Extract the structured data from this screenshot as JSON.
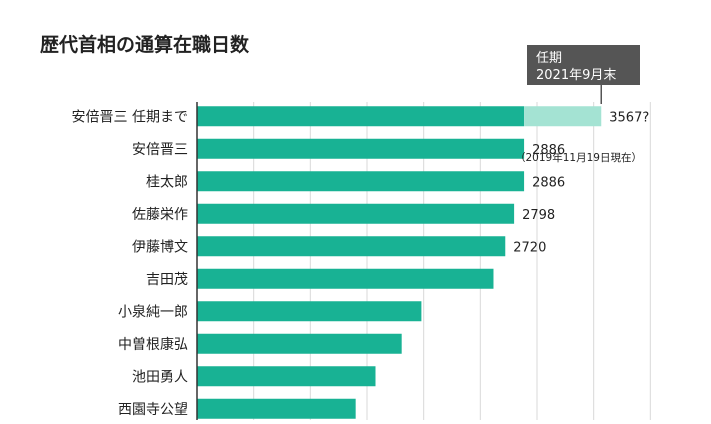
{
  "chart_data": {
    "type": "bar",
    "orientation": "horizontal",
    "title": "歴代首相の通算在職日数",
    "categories": [
      "安倍晋三 任期まで",
      "安倍晋三",
      "桂太郎",
      "佐藤栄作",
      "伊藤博文",
      "吉田茂",
      "小泉純一郎",
      "中曽根康弘",
      "池田勇人",
      "西園寺公望"
    ],
    "values": [
      3567,
      2886,
      2886,
      2798,
      2720,
      2616,
      1980,
      1806,
      1575,
      1400
    ],
    "value_labels": [
      "3567?",
      "2886",
      "2886",
      "2798",
      "2720",
      "",
      "",
      "",
      "",
      ""
    ],
    "base_values": [
      2886,
      null,
      null,
      null,
      null,
      null,
      null,
      null,
      null,
      null
    ],
    "annotations": {
      "projection_callout_line1": "任期",
      "projection_callout_line2": "2021年9月末",
      "asof_note": "（2019年11月19日現在）"
    },
    "xlim": [
      0,
      4500
    ],
    "grid": true,
    "colors": {
      "bar": "#18b294",
      "projection": "#a4e3d3",
      "callout_bg": "#555555",
      "grid": "#d9d9d9",
      "axis": "#333333"
    }
  }
}
